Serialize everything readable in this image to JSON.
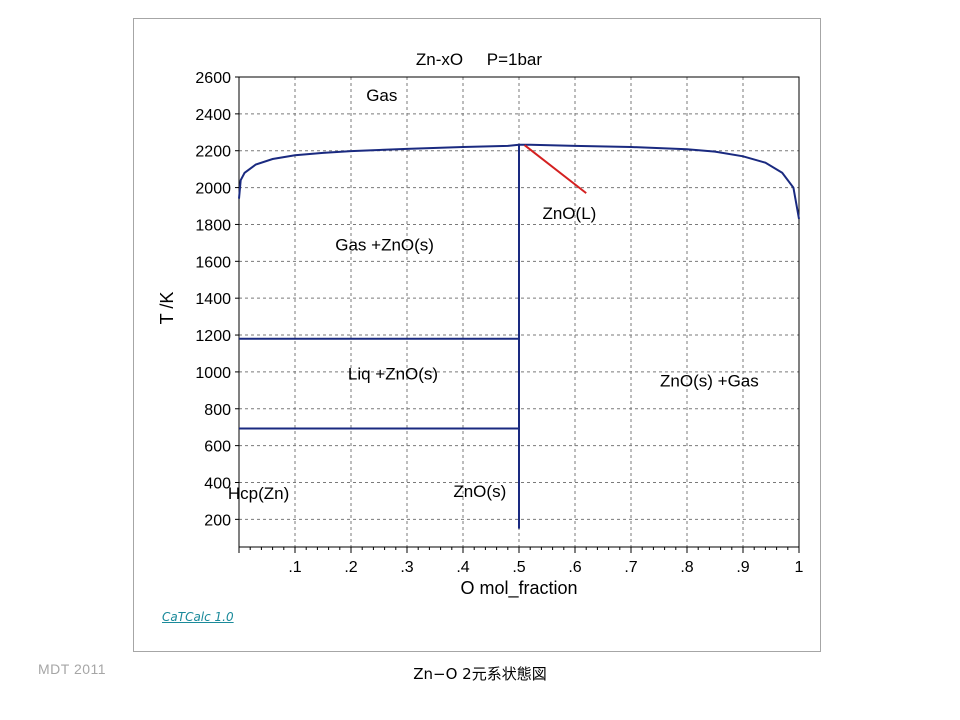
{
  "chart_data": {
    "type": "line",
    "title": "Zn-xO     P=1bar",
    "xlabel": "O mol_fraction",
    "ylabel": "T /K",
    "xlim": [
      0,
      1
    ],
    "ylim": [
      50,
      2600
    ],
    "x_ticks": [
      ".1",
      ".2",
      ".3",
      ".4",
      ".5",
      ".6",
      ".7",
      ".8",
      ".9",
      "1"
    ],
    "y_ticks": [
      "200",
      "400",
      "600",
      "800",
      "1000",
      "1200",
      "1400",
      "1600",
      "1800",
      "2000",
      "2200",
      "2400",
      "2600"
    ],
    "grid": true,
    "series": [
      {
        "values": [
          [
            0.0,
            1940
          ],
          [
            0.003,
            2040
          ],
          [
            0.01,
            2080
          ],
          [
            0.03,
            2125
          ],
          [
            0.06,
            2155
          ],
          [
            0.1,
            2175
          ],
          [
            0.15,
            2188
          ],
          [
            0.2,
            2198
          ],
          [
            0.3,
            2210
          ],
          [
            0.4,
            2220
          ],
          [
            0.48,
            2226
          ],
          [
            0.5,
            2232
          ],
          [
            0.52,
            2232
          ],
          [
            0.6,
            2226
          ],
          [
            0.7,
            2220
          ],
          [
            0.8,
            2208
          ],
          [
            0.85,
            2195
          ],
          [
            0.9,
            2170
          ],
          [
            0.94,
            2135
          ],
          [
            0.97,
            2080
          ],
          [
            0.99,
            2000
          ],
          [
            1.0,
            1830
          ]
        ]
      },
      {
        "values": [
          [
            0.5,
            150
          ],
          [
            0.5,
            2232
          ]
        ]
      },
      {
        "values": [
          [
            0.0,
            1180
          ],
          [
            0.5,
            1180
          ]
        ]
      },
      {
        "values": [
          [
            0.0,
            693
          ],
          [
            0.5,
            693
          ]
        ]
      }
    ],
    "annotations": [
      {
        "text": "Gas",
        "x": 0.255,
        "y": 2470
      },
      {
        "text": "Gas +ZnO(s)",
        "x": 0.26,
        "y": 1660
      },
      {
        "text": "Liq +ZnO(s)",
        "x": 0.275,
        "y": 960
      },
      {
        "text": "ZnO(s) +Gas",
        "x": 0.84,
        "y": 920
      },
      {
        "text": "Hcp(Zn)",
        "x": 0.035,
        "y": 310
      },
      {
        "text": "ZnO(s)",
        "x": 0.43,
        "y": 320
      },
      {
        "text": "ZnO(L)",
        "x": 0.59,
        "y": 1830
      }
    ],
    "pointer": {
      "label": "ZnO(L)",
      "from": [
        0.62,
        1970
      ],
      "to": [
        0.51,
        2230
      ],
      "color": "#d42020"
    },
    "line_color": "#1a2a80"
  },
  "tool_link": "CaTCalc 1.0",
  "footer_credit": "MDT   2011",
  "slide_caption": "Zn−O 2元系状態図"
}
